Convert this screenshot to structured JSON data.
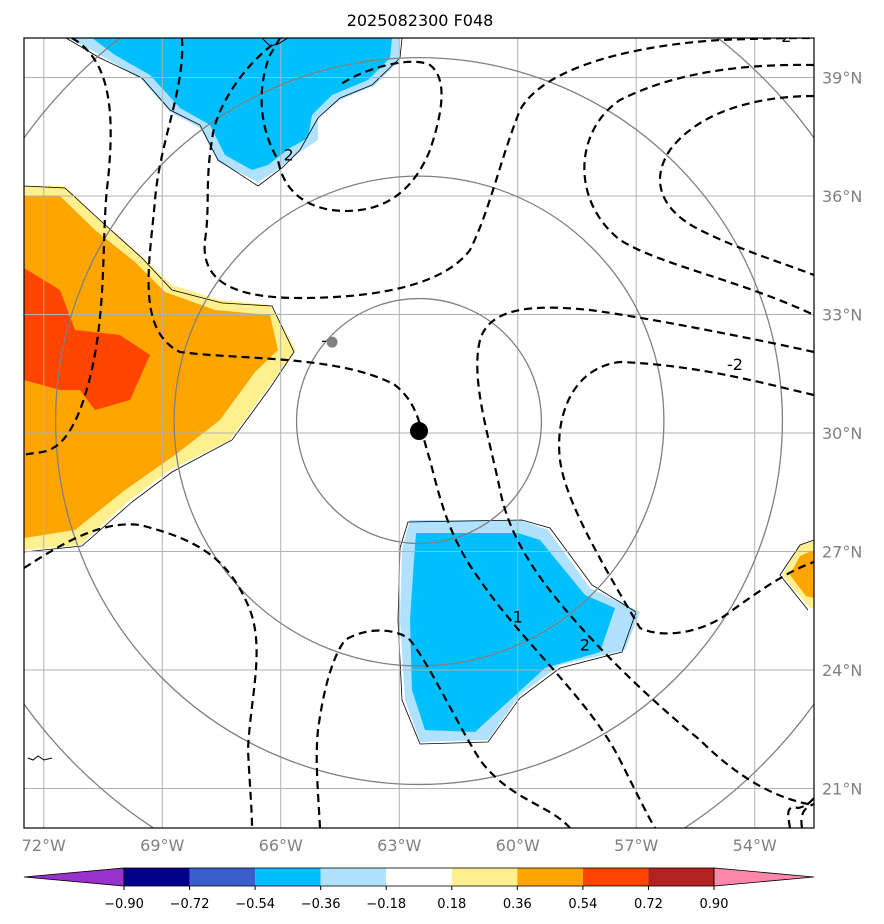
{
  "title": "2025082300 F048",
  "map": {
    "lon_range": [
      -72.5,
      -52.5
    ],
    "lat_range": [
      20,
      40
    ],
    "lon_ticks": [
      {
        "value": -72,
        "label": "72°W"
      },
      {
        "value": -69,
        "label": "69°W"
      },
      {
        "value": -66,
        "label": "66°W"
      },
      {
        "value": -63,
        "label": "63°W"
      },
      {
        "value": -60,
        "label": "60°W"
      },
      {
        "value": -57,
        "label": "57°W"
      },
      {
        "value": -54,
        "label": "54°W"
      }
    ],
    "lat_ticks": [
      {
        "value": 39,
        "label": "39°N"
      },
      {
        "value": 36,
        "label": "36°N"
      },
      {
        "value": 33,
        "label": "33°N"
      },
      {
        "value": 30,
        "label": "30°N"
      },
      {
        "value": 27,
        "label": "27°N"
      },
      {
        "value": 24,
        "label": "24°N"
      },
      {
        "value": 21,
        "label": "21°N"
      }
    ],
    "storm_center": {
      "lon": -62.5,
      "lat": 30.05
    },
    "secondary_marker": {
      "lon": -64.7,
      "lat": 32.3
    },
    "range_rings_deg": [
      3.1,
      6.2,
      9.2,
      12.3
    ],
    "contour_labels": [
      {
        "text": "2",
        "lon": -65.8,
        "lat": 36.9
      },
      {
        "text": "-2",
        "lon": -54.5,
        "lat": 31.6
      },
      {
        "text": "-",
        "lon": -64.9,
        "lat": 32.2
      },
      {
        "text": "2",
        "lon": -53.2,
        "lat": 39.9
      },
      {
        "text": "1",
        "lon": -60.0,
        "lat": 25.2
      },
      {
        "text": "2",
        "lon": -58.3,
        "lat": 24.5
      }
    ]
  },
  "colorbar": {
    "colors": [
      "#9932cc",
      "#00008b",
      "#3a5fcd",
      "#00bfff",
      "#b0e2ff",
      "#ffffff",
      "#fff08f",
      "#ffa500",
      "#ff4500",
      "#b22222",
      "#ff88aa"
    ],
    "tick_labels": [
      "−0.90",
      "−0.72",
      "−0.54",
      "−0.36",
      "−0.18",
      "0.18",
      "0.36",
      "0.54",
      "0.72",
      "0.90"
    ]
  }
}
